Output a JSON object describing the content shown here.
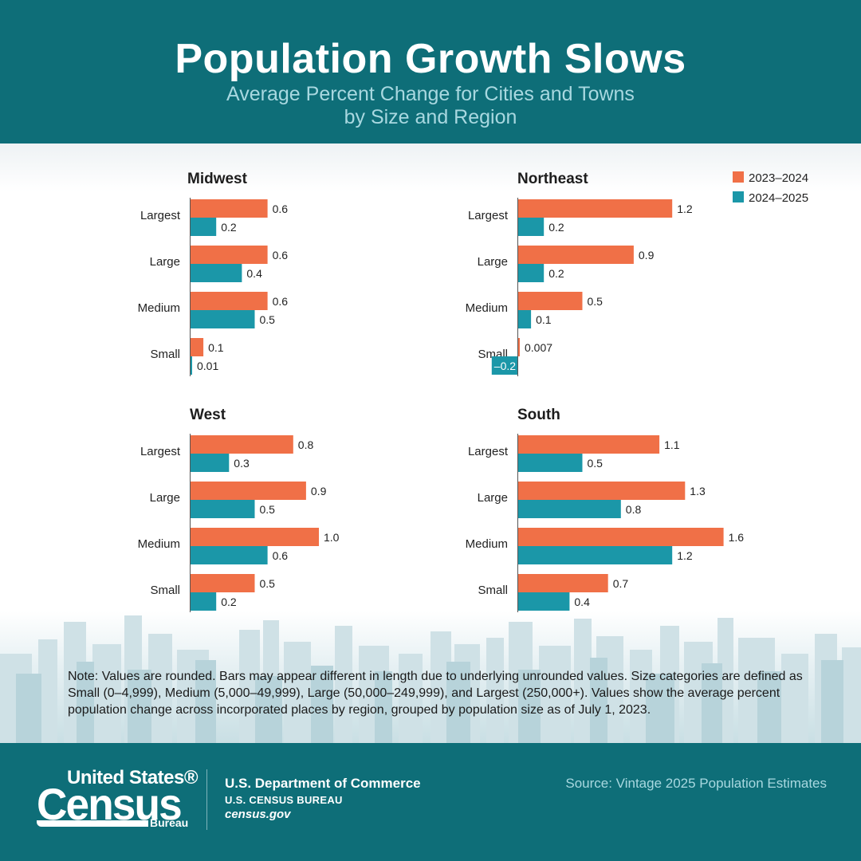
{
  "header": {
    "title": "Population Growth Slows",
    "subtitle_line1": "Average Percent Change for Cities and Towns",
    "subtitle_line2": "by Size and Region"
  },
  "colors": {
    "series_2023_2024": "#f07047",
    "series_2024_2025": "#1b97a8",
    "header_bg": "#0e6e78"
  },
  "chart_data": {
    "type": "bar",
    "orientation": "horizontal",
    "categories": [
      "Largest",
      "Large",
      "Medium",
      "Small"
    ],
    "legend": [
      "2023–2024",
      "2024–2025"
    ],
    "legend_position": "top-right",
    "panels": [
      {
        "region": "Midwest",
        "series": [
          {
            "name": "2023–2024",
            "values": [
              0.6,
              0.6,
              0.6,
              0.1
            ],
            "labels": [
              "0.6",
              "0.6",
              "0.6",
              "0.1"
            ]
          },
          {
            "name": "2024–2025",
            "values": [
              0.2,
              0.4,
              0.5,
              0.01
            ],
            "labels": [
              "0.2",
              "0.4",
              "0.5",
              "0.01"
            ]
          }
        ]
      },
      {
        "region": "Northeast",
        "series": [
          {
            "name": "2023–2024",
            "values": [
              1.2,
              0.9,
              0.5,
              0.007
            ],
            "labels": [
              "1.2",
              "0.9",
              "0.5",
              "0.007"
            ]
          },
          {
            "name": "2024–2025",
            "values": [
              0.2,
              0.2,
              0.1,
              -0.2
            ],
            "labels": [
              "0.2",
              "0.2",
              "0.1",
              "–0.2"
            ]
          }
        ]
      },
      {
        "region": "West",
        "series": [
          {
            "name": "2023–2024",
            "values": [
              0.8,
              0.9,
              1.0,
              0.5
            ],
            "labels": [
              "0.8",
              "0.9",
              "1.0",
              "0.5"
            ]
          },
          {
            "name": "2024–2025",
            "values": [
              0.3,
              0.5,
              0.6,
              0.2
            ],
            "labels": [
              "0.3",
              "0.5",
              "0.6",
              "0.2"
            ]
          }
        ]
      },
      {
        "region": "South",
        "series": [
          {
            "name": "2023–2024",
            "values": [
              1.1,
              1.3,
              1.6,
              0.7
            ],
            "labels": [
              "1.1",
              "1.3",
              "1.6",
              "0.7"
            ]
          },
          {
            "name": "2024–2025",
            "values": [
              0.5,
              0.8,
              1.2,
              0.4
            ],
            "labels": [
              "0.5",
              "0.8",
              "1.2",
              "0.4"
            ]
          }
        ]
      }
    ]
  },
  "note": "Note: Values are rounded. Bars may appear different in length due to underlying unrounded values. Size categories are defined as Small (0–4,999), Medium (5,000–49,999), Large (50,000–249,999), and Largest (250,000+). Values show the average percent population change across incorporated places by region, grouped by population size as of July 1, 2023.",
  "footer": {
    "logo_line1": "United States®",
    "logo_line2": "Census",
    "logo_line3": "Bureau",
    "department": "U.S. Department of Commerce",
    "bureau": "U.S. CENSUS BUREAU",
    "website": "census.gov",
    "source": "Source: Vintage 2025 Population Estimates"
  }
}
